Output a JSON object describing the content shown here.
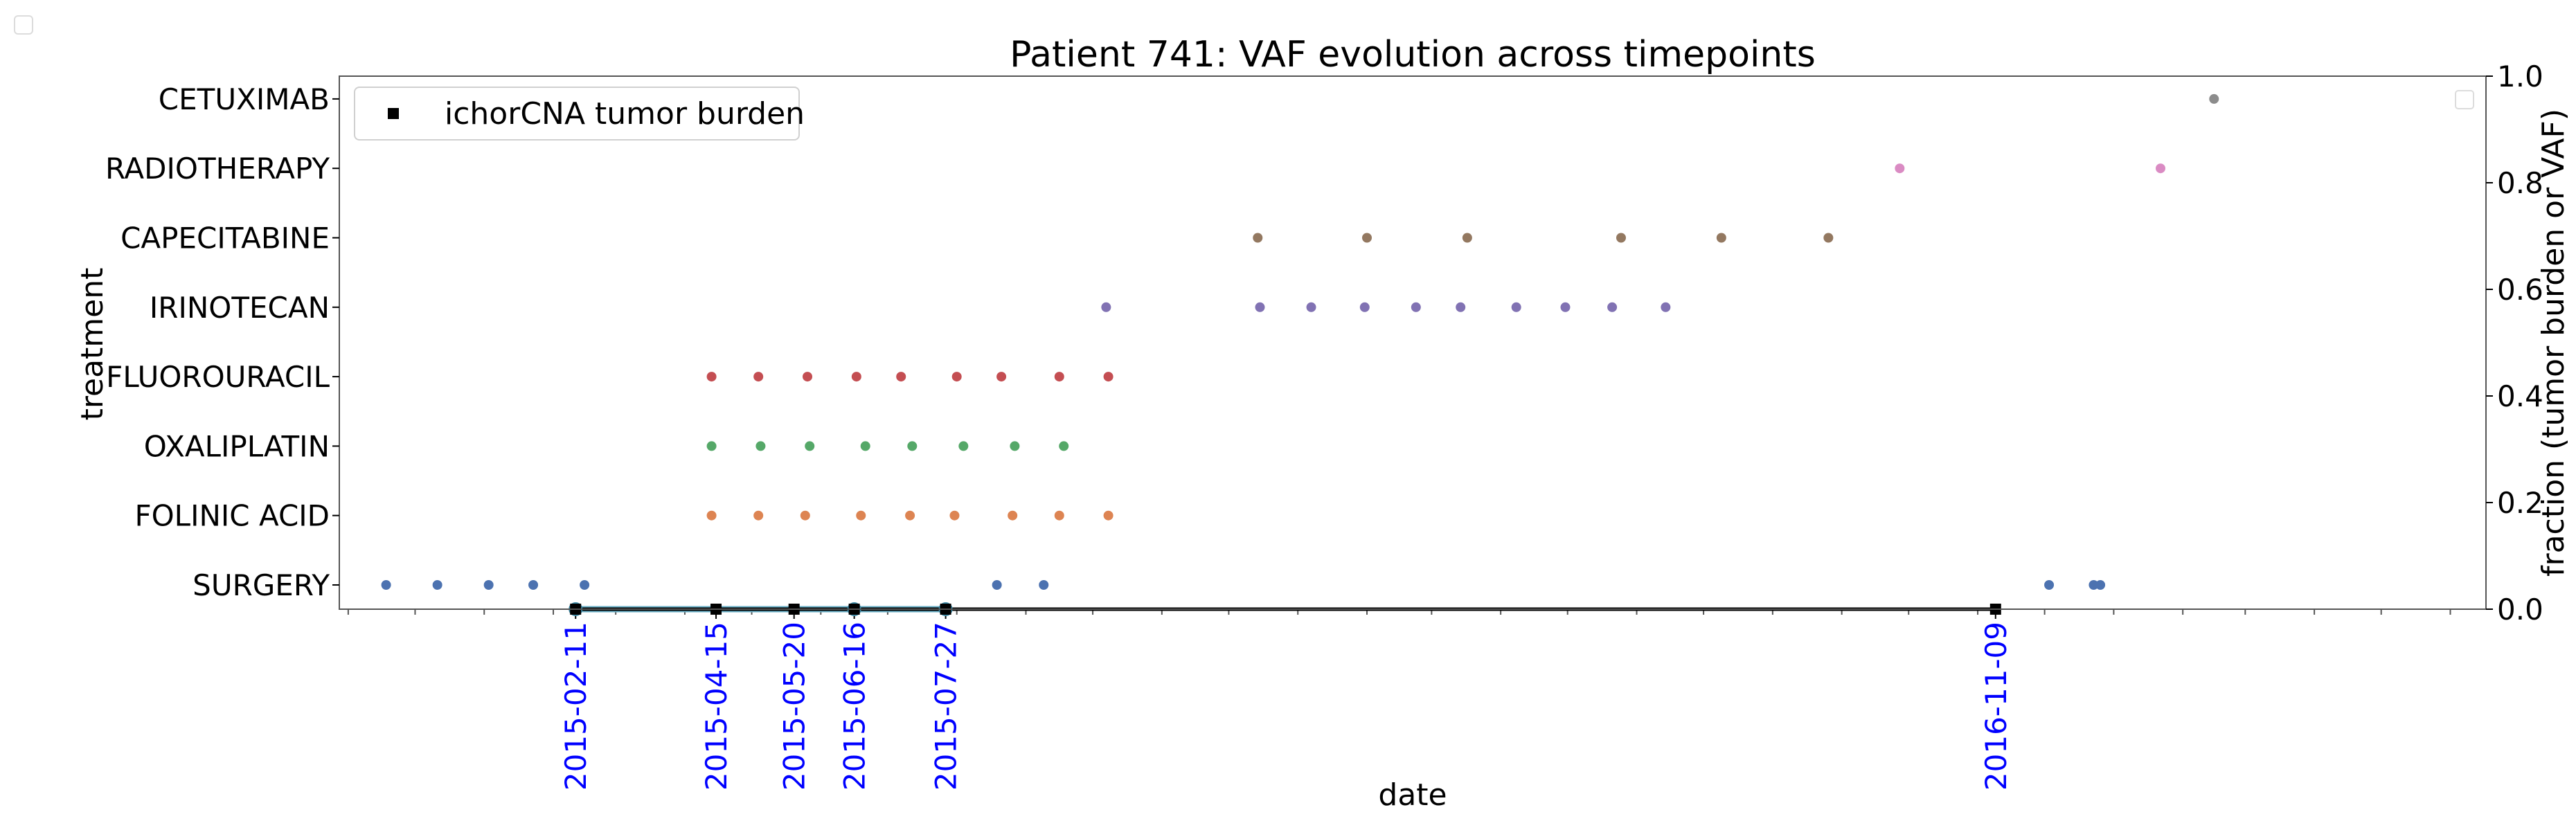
{
  "chart_data": {
    "type": "scatter",
    "title": "Patient 741: VAF evolution across timepoints",
    "xlabel": "date",
    "ylabel": "treatment",
    "ylabel_right": "fraction (tumor burden or VAF)",
    "xlim": [
      "2014-10-28",
      "2017-06-17"
    ],
    "ylim_right": [
      0.0,
      1.0
    ],
    "right_ticks": [
      "0.0",
      "0.2",
      "0.4",
      "0.6",
      "0.8",
      "1.0"
    ],
    "treatments": [
      "SURGERY",
      "FOLINIC ACID",
      "OXALIPLATIN",
      "FLUOROURACIL",
      "IRINOTECAN",
      "CAPECITABINE",
      "RADIOTHERAPY",
      "CETUXIMAB"
    ],
    "timepoint_labels": [
      "2015-02-11",
      "2015-04-15",
      "2015-05-20",
      "2015-06-16",
      "2015-07-27",
      "2016-11-09"
    ],
    "legend": {
      "entries": [
        "ichorCNA tumor burden"
      ],
      "position": "upper left"
    },
    "treatment_points": [
      {
        "name": "SURGERY",
        "color": "#4c72b0",
        "dates": [
          "2014-11-18",
          "2014-12-11",
          "2015-01-03",
          "2015-01-23",
          "2015-02-15",
          "2015-08-19",
          "2015-09-09",
          "2016-12-03",
          "2016-12-23",
          "2016-12-26"
        ]
      },
      {
        "name": "FOLINIC ACID",
        "color": "#dd8452",
        "dates": [
          "2015-04-13",
          "2015-05-04",
          "2015-05-25",
          "2015-06-19",
          "2015-07-11",
          "2015-07-31",
          "2015-08-26",
          "2015-09-16",
          "2015-10-08"
        ]
      },
      {
        "name": "OXALIPLATIN",
        "color": "#55a868",
        "dates": [
          "2015-04-13",
          "2015-05-05",
          "2015-05-27",
          "2015-06-21",
          "2015-07-12",
          "2015-08-04",
          "2015-08-27",
          "2015-09-18"
        ]
      },
      {
        "name": "FLUOROURACIL",
        "color": "#c44e52",
        "dates": [
          "2015-04-13",
          "2015-05-04",
          "2015-05-26",
          "2015-06-17",
          "2015-07-07",
          "2015-08-01",
          "2015-08-21",
          "2015-09-16",
          "2015-10-08"
        ]
      },
      {
        "name": "IRINOTECAN",
        "color": "#8172b3",
        "dates": [
          "2015-10-07",
          "2015-12-15",
          "2016-01-07",
          "2016-01-31",
          "2016-02-23",
          "2016-03-14",
          "2016-04-08",
          "2016-04-30",
          "2016-05-21",
          "2016-06-14"
        ]
      },
      {
        "name": "CAPECITABINE",
        "color": "#937860",
        "dates": [
          "2015-12-14",
          "2016-02-01",
          "2016-03-17",
          "2016-05-25",
          "2016-07-09",
          "2016-08-26"
        ]
      },
      {
        "name": "RADIOTHERAPY",
        "color": "#da8bc3",
        "dates": [
          "2016-09-27",
          "2017-01-22"
        ]
      },
      {
        "name": "CETUXIMAB",
        "color": "#8c8c8c",
        "dates": [
          "2017-02-15"
        ]
      }
    ],
    "series": [
      {
        "name": "ichorCNA tumor burden",
        "color": "#000000",
        "marker": "square",
        "x": [
          "2015-02-11",
          "2015-04-15",
          "2015-05-20",
          "2015-06-16",
          "2015-07-27",
          "2016-11-09"
        ],
        "values": [
          0.0,
          0.0,
          0.0,
          0.0,
          0.0,
          0.0
        ]
      },
      {
        "color": "#6ab0c8",
        "marker": "circle",
        "x": [
          "2015-02-11",
          "2015-06-16",
          "2015-07-27"
        ],
        "values": [
          0.0,
          0.0,
          0.0
        ]
      }
    ]
  }
}
